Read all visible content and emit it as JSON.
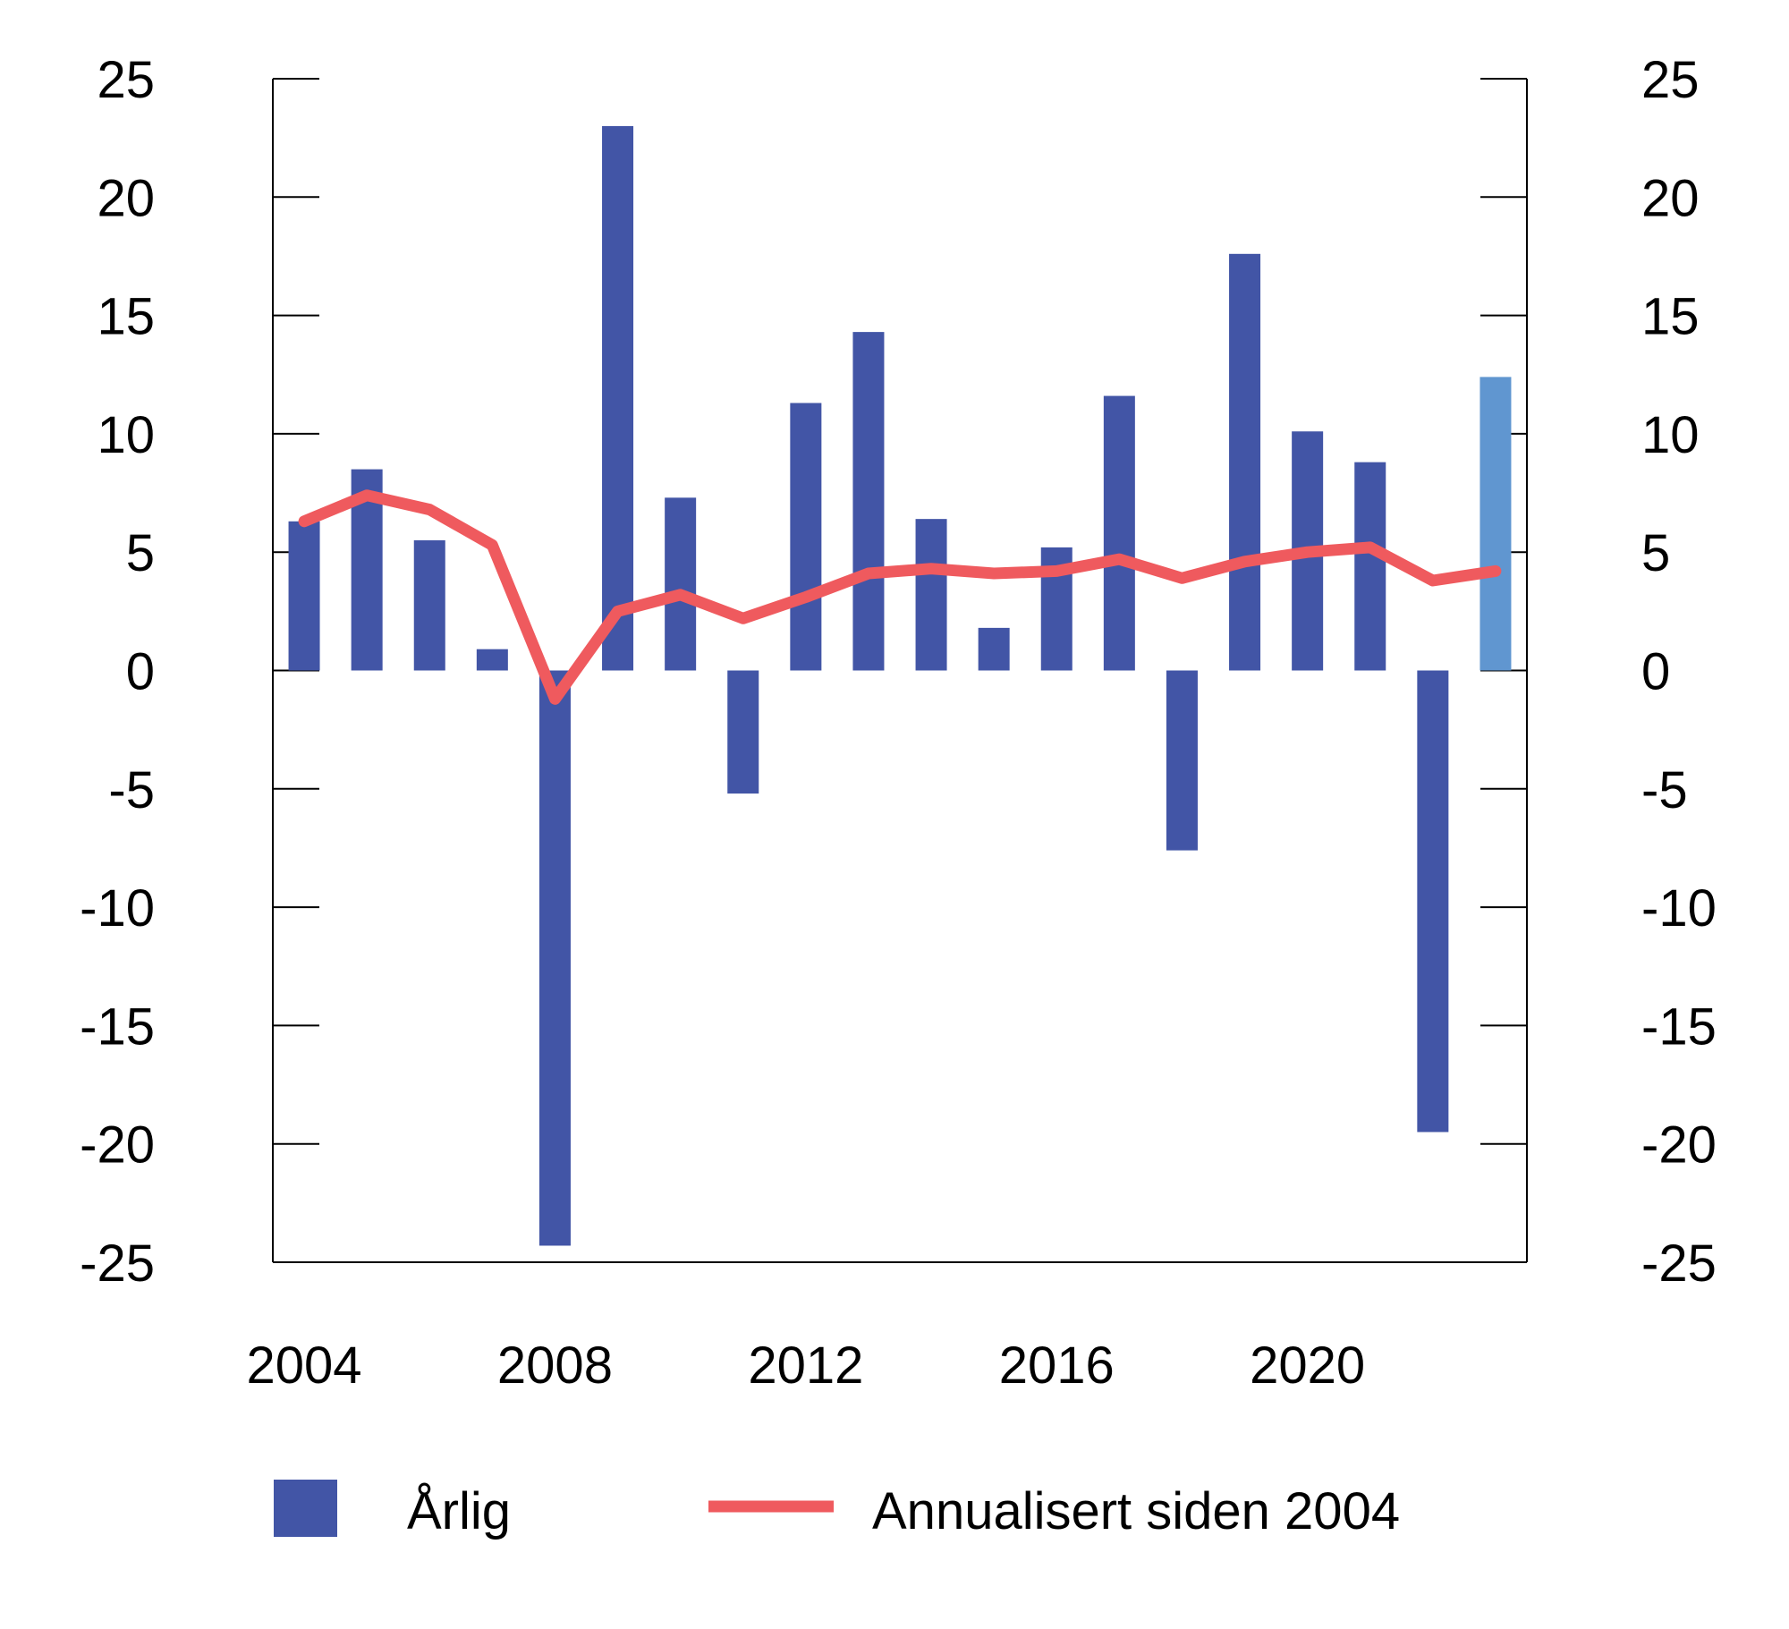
{
  "chart_data": {
    "type": "bar",
    "x": [
      2004,
      2005,
      2006,
      2007,
      2008,
      2009,
      2010,
      2011,
      2012,
      2013,
      2014,
      2015,
      2016,
      2017,
      2018,
      2019,
      2020,
      2021,
      2022,
      2023
    ],
    "x_tick_labels": [
      "2004",
      "2008",
      "2012",
      "2016",
      "2020"
    ],
    "x_tick_values": [
      2004,
      2008,
      2012,
      2016,
      2020
    ],
    "y_ticks": [
      25,
      20,
      15,
      10,
      5,
      0,
      -5,
      -10,
      -15,
      -20,
      -25
    ],
    "ylim": [
      -25,
      25
    ],
    "secondary_ylim": [
      -25,
      25
    ],
    "grid": false,
    "legend_position": "bottom",
    "series": [
      {
        "name": "Årlig",
        "type": "bar",
        "color": "#4255a6",
        "highlight_color": "#6096d0",
        "highlight_index": 19,
        "values": [
          6.3,
          8.5,
          5.5,
          0.9,
          -24.3,
          23.0,
          7.3,
          -5.2,
          11.3,
          14.3,
          6.4,
          1.8,
          5.2,
          11.6,
          -7.6,
          17.6,
          10.1,
          8.8,
          -19.5,
          12.4
        ]
      },
      {
        "name": "Annualisert siden 2004",
        "type": "line",
        "color": "#ef5a5e",
        "values": [
          6.3,
          7.4,
          6.8,
          5.3,
          -1.2,
          2.5,
          3.2,
          2.2,
          3.1,
          4.1,
          4.3,
          4.1,
          4.2,
          4.7,
          3.9,
          4.6,
          5.0,
          5.2,
          3.8,
          4.2
        ]
      }
    ]
  }
}
